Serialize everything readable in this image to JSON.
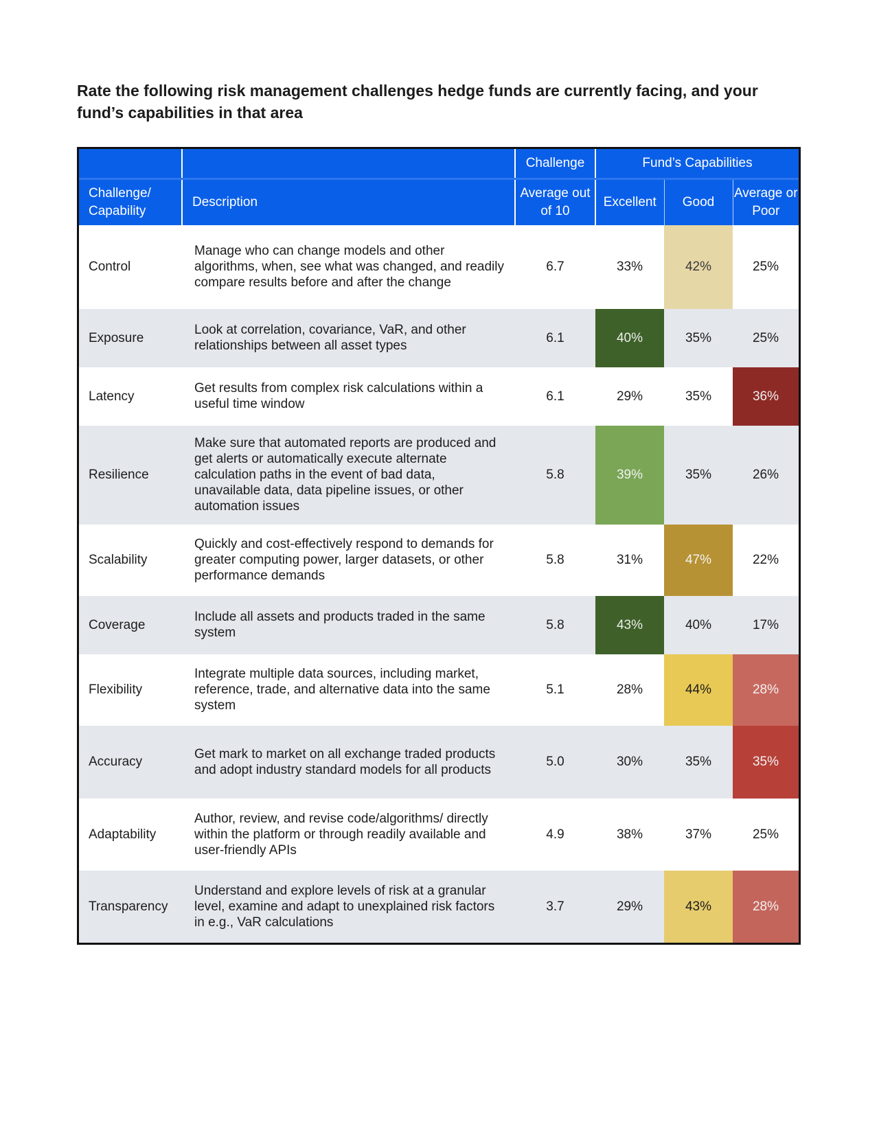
{
  "title": "Rate the following risk management challenges hedge funds are currently facing, and your fund’s capabilities in that area",
  "header": {
    "group_challenge": "Challenge",
    "group_capabilities": "Fund’s Capabilities",
    "col_name": "Challenge/ Capability",
    "col_description": "Description",
    "col_average": "Average out of 10",
    "col_excellent": "Excellent",
    "col_good": "Good",
    "col_poor": "Average or Poor"
  },
  "rows": [
    {
      "name": "Control",
      "description": "Manage who can change models and other algorithms, when, see what was changed, and readily compare results before and after the change",
      "average": "6.7",
      "excellent": "33%",
      "good": "42%",
      "poor": "25%"
    },
    {
      "name": "Exposure",
      "description": "Look at correlation, covariance, VaR, and other relationships between all asset types",
      "average": "6.1",
      "excellent": "40%",
      "good": "35%",
      "poor": "25%"
    },
    {
      "name": "Latency",
      "description": "Get results from complex risk calculations within a useful time window",
      "average": "6.1",
      "excellent": "29%",
      "good": "35%",
      "poor": "36%"
    },
    {
      "name": "Resilience",
      "description": "Make sure that automated reports are produced and get alerts or automatically execute alternate calculation paths in the event of bad data, unavailable data, data pipeline issues, or other automation issues",
      "average": "5.8",
      "excellent": "39%",
      "good": "35%",
      "poor": "26%"
    },
    {
      "name": "Scalability",
      "description": "Quickly and cost-effectively respond to demands for greater computing power, larger datasets, or other performance demands",
      "average": "5.8",
      "excellent": "31%",
      "good": "47%",
      "poor": "22%"
    },
    {
      "name": "Coverage",
      "description": "Include all assets and products traded in the same system",
      "average": "5.8",
      "excellent": "43%",
      "good": "40%",
      "poor": "17%"
    },
    {
      "name": "Flexibility",
      "description": "Integrate multiple data sources, including market, reference, trade, and alternative data into the same system",
      "average": "5.1",
      "excellent": "28%",
      "good": "44%",
      "poor": "28%"
    },
    {
      "name": "Accuracy",
      "description": "Get mark to market on all exchange traded products and adopt industry standard models for all products",
      "average": "5.0",
      "excellent": "30%",
      "good": "35%",
      "poor": "35%"
    },
    {
      "name": "Adaptability",
      "description": "Author, review, and revise code/algorithms/ directly within the platform or through readily available and user-friendly APIs",
      "average": "4.9",
      "excellent": "38%",
      "good": "37%",
      "poor": "25%"
    },
    {
      "name": "Transparency",
      "description": "Understand and explore levels of risk at a granular level, examine and adapt to unexplained risk factors in e.g., VaR calculations",
      "average": "3.7",
      "excellent": "29%",
      "good": "43%",
      "poor": "28%"
    }
  ],
  "highlights": {
    "0": {
      "good": {
        "bg": "#e6d7a6",
        "fg": "#3a3a3a"
      }
    },
    "1": {
      "excellent": {
        "bg": "#3d6128",
        "fg": "#eeeeee"
      }
    },
    "2": {
      "poor": {
        "bg": "#8e2a25",
        "fg": "#eeeeee"
      }
    },
    "3": {
      "excellent": {
        "bg": "#7aa656",
        "fg": "#f2f2f2"
      }
    },
    "4": {
      "good": {
        "bg": "#b79234",
        "fg": "#f2f2f2"
      }
    },
    "5": {
      "excellent": {
        "bg": "#3f6129",
        "fg": "#eeeeee"
      }
    },
    "6": {
      "good": {
        "bg": "#e8c955",
        "fg": "#1d1d1d"
      },
      "poor": {
        "bg": "#c7685f",
        "fg": "#f2f2f2"
      }
    },
    "7": {
      "poor": {
        "bg": "#b74138",
        "fg": "#f2f2f2"
      }
    },
    "9": {
      "good": {
        "bg": "#e7cc6e",
        "fg": "#1d1d1d"
      },
      "poor": {
        "bg": "#c4655b",
        "fg": "#f2f2f2"
      }
    }
  },
  "colors": {
    "header_blue": "#0a5fe8",
    "row_stripe": "#e4e7ec"
  }
}
